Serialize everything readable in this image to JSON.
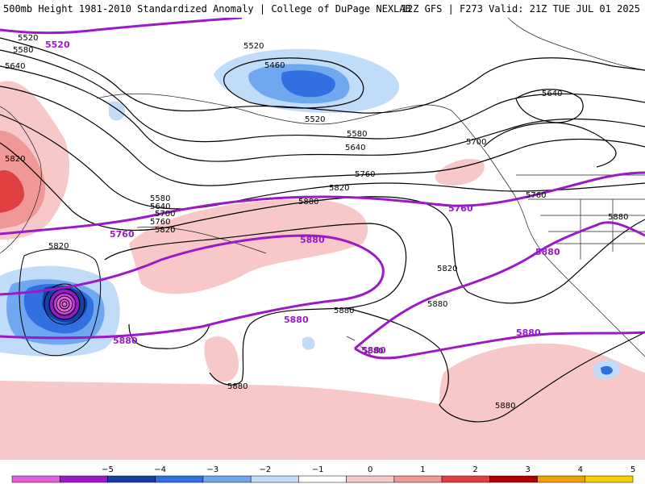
{
  "header": {
    "title_left": "500mb Height 1981-2010 Standardized Anomaly | College of DuPage NEXLAB",
    "title_right": "12Z GFS | F273 Valid: 21Z TUE JUL 01 2025"
  },
  "contour_labels": {
    "black": [
      "5520",
      "5580",
      "5640",
      "5520",
      "5460",
      "5520",
      "5580",
      "5640",
      "5700",
      "5640",
      "5820",
      "5760",
      "5820",
      "5880",
      "5580",
      "5640",
      "5700",
      "5760",
      "5820",
      "5820",
      "5880",
      "5760",
      "5880",
      "5820",
      "5880",
      "5880",
      "5880",
      "5880"
    ],
    "purple": [
      "5520",
      "5760",
      "5760",
      "5880",
      "5880",
      "5880",
      "5880",
      "5880",
      "5880"
    ]
  },
  "colorbar": {
    "tick_labels": [
      "−5",
      "−4",
      "−3",
      "−2",
      "−1",
      "0",
      "1",
      "2",
      "3",
      "4",
      "5"
    ],
    "colors": [
      "#e060e0",
      "#9b19c6",
      "#1840a0",
      "#3070e0",
      "#70a8f0",
      "#c0dcf8",
      "#ffffff",
      "#f8c8c8",
      "#f09898",
      "#e04040",
      "#b00000",
      "#f0a000",
      "#f8d000"
    ]
  }
}
